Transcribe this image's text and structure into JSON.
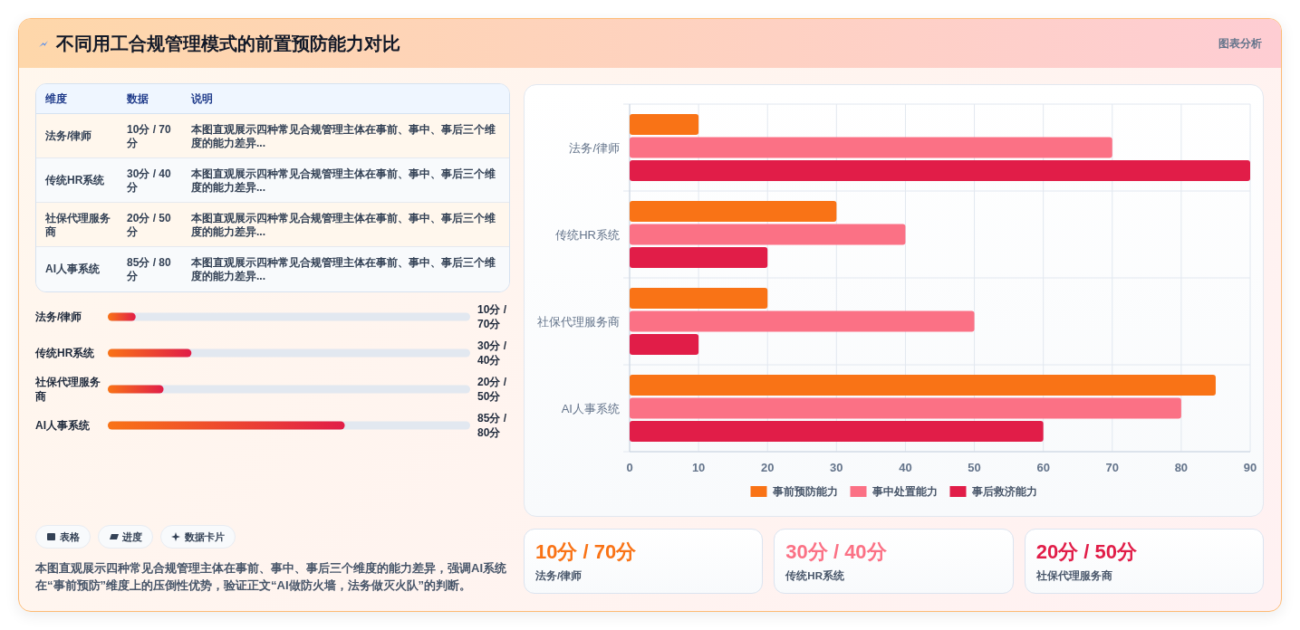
{
  "chart_data": [
    {
      "type": "other",
      "title": "不同用工合规管理模式的前置预防能力对比",
      "annotations": [
        "图表分析"
      ]
    },
    {
      "type": "other",
      "categories": [
        "维度",
        "数据",
        "说明"
      ],
      "cell_labels": [
        [
          "法务/律师",
          "10分 / 70分",
          "本图直观展示四种常见合规管理主体在事前、事中、事后三个维度的能力差异..."
        ],
        [
          "传统HR系统",
          "30分 / 40分",
          "本图直观展示四种常见合规管理主体在事前、事中、事后三个维度的能力差异..."
        ],
        [
          "社保代理服务商",
          "20分 / 50分",
          "本图直观展示四种常见合规管理主体在事前、事中、事后三个维度的能力差异..."
        ],
        [
          "AI人事系统",
          "85分 / 80分",
          "本图直观展示四种常见合规管理主体在事前、事中、事后三个维度的能力差异..."
        ]
      ]
    },
    {
      "type": "bar",
      "orientation": "horizontal",
      "categories": [
        "法务/律师",
        "传统HR系统",
        "社保代理服务商",
        "AI人事系统"
      ],
      "values": [
        10,
        30,
        20,
        85
      ],
      "value_labels": [
        "10分 / 70分",
        "30分 / 40分",
        "20分 / 50分",
        "85分 / 80分"
      ],
      "color": "#f97316",
      "xlim": [
        0,
        130
      ],
      "tick_labels": "y"
    },
    {
      "type": "other",
      "categories": [
        "表格",
        "进度",
        "数据卡片"
      ],
      "annotations": [
        "本图直观展示四种常见合规管理主体在事前、事中、事后三个维度的能力差异，强调AI系统在“事前预防”维度上的压倒性优势，验证正文“AI做防火墙，法务做灭火队”的判断。"
      ]
    },
    {
      "type": "bar",
      "orientation": "horizontal",
      "categories": [
        "法务/律师",
        "传统HR系统",
        "社保代理服务商",
        "AI人事系统"
      ],
      "series": [
        {
          "name": "事前预防能力",
          "color": "#f97316",
          "values": [
            10,
            30,
            20,
            85
          ]
        },
        {
          "name": "事中处置能力",
          "color": "#fb7185",
          "values": [
            70,
            40,
            50,
            80
          ]
        },
        {
          "name": "事后救济能力",
          "color": "#e11d48",
          "values": [
            90,
            20,
            10,
            60
          ]
        }
      ],
      "xlim": [
        0,
        90
      ],
      "xticks": [
        0,
        10,
        20,
        30,
        40,
        50,
        60,
        70,
        80,
        90
      ],
      "grid": true,
      "legend": "bottom"
    },
    {
      "type": "other",
      "categories": [
        "法务/律师",
        "传统HR系统",
        "社保代理服务商"
      ],
      "value_labels": [
        "10分 / 70分",
        "30分 / 40分",
        "20分 / 50分"
      ]
    }
  ]
}
